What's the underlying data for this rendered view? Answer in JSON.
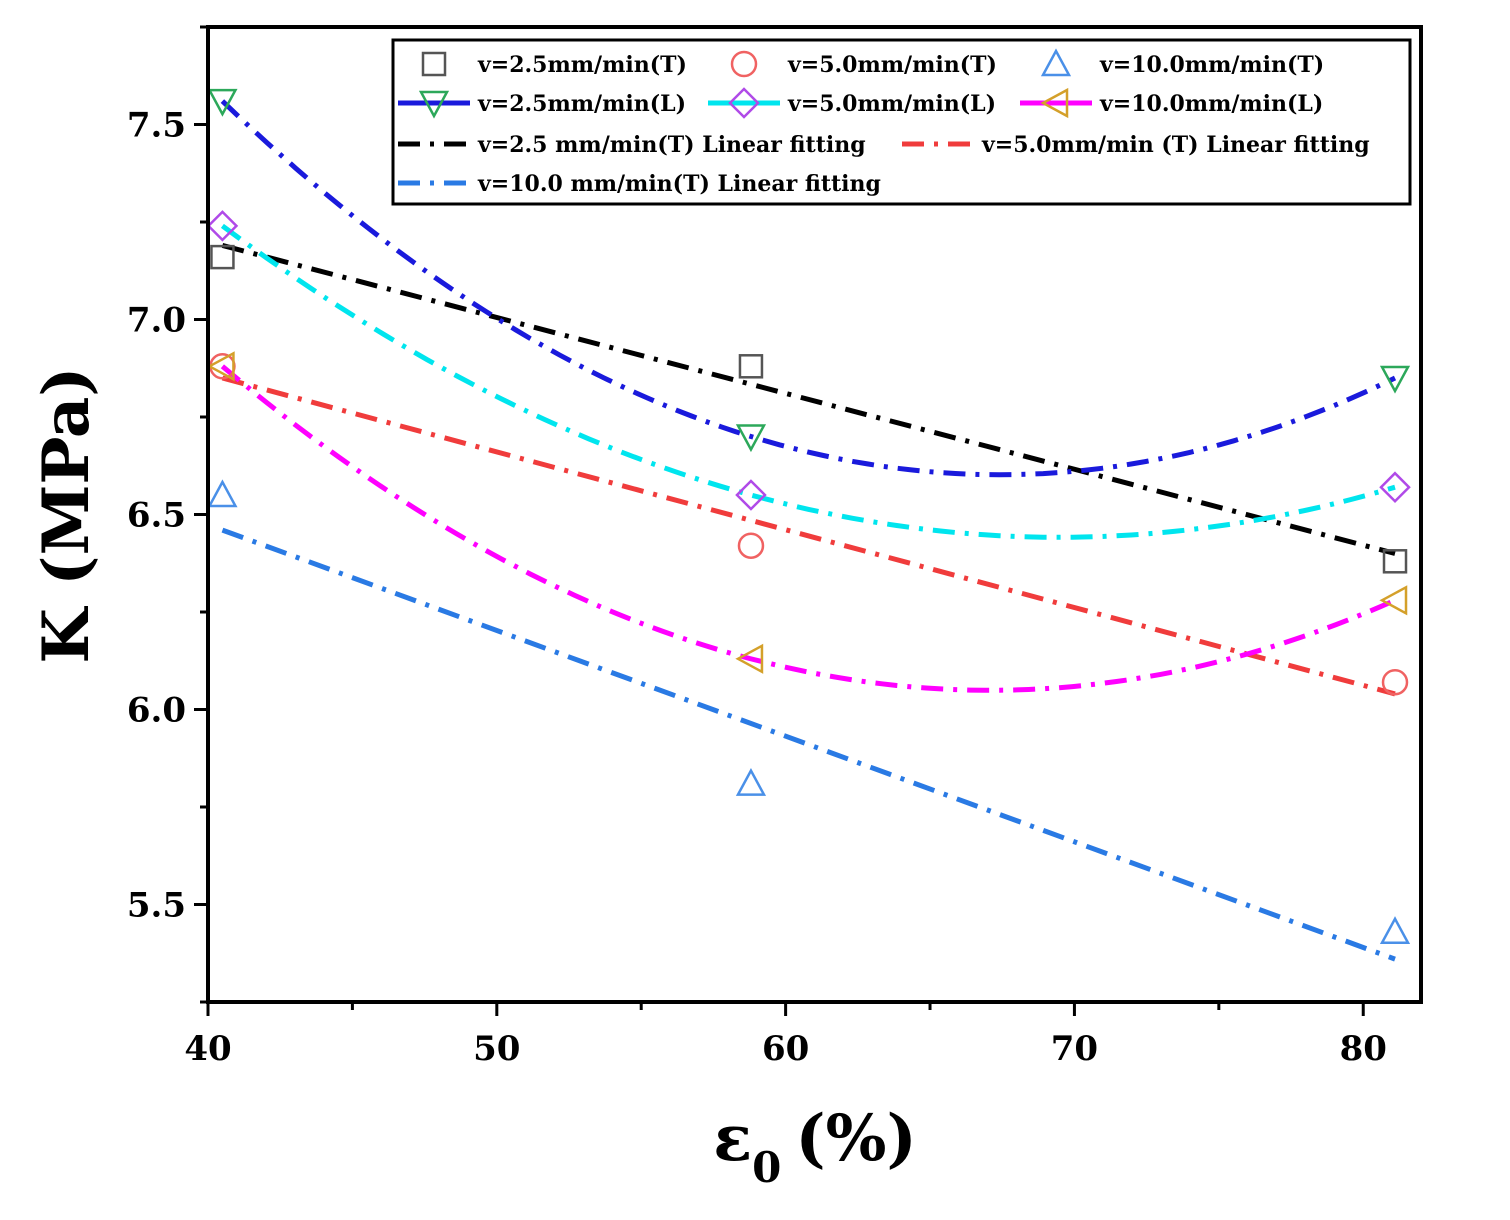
{
  "chart_data": {
    "type": "scatter",
    "xlabel": "ε",
    "xlabel_subscript": "0",
    "xlabel_unit": "(%)",
    "ylabel": "K (MPa)",
    "xlim": [
      40,
      82
    ],
    "ylim": [
      5.25,
      7.75
    ],
    "xticks": [
      40,
      50,
      60,
      70,
      80
    ],
    "yticks": [
      5.5,
      6.0,
      6.5,
      7.0,
      7.5
    ],
    "xtick_labels": [
      "40",
      "50",
      "60",
      "70",
      "80"
    ],
    "ytick_labels": [
      "5.5",
      "6.0",
      "6.5",
      "7.0",
      "7.5"
    ],
    "grid": false,
    "legend_position": "top-right",
    "scatter_series": [
      {
        "name": "v=2.5mm/min(T)",
        "marker": "square",
        "color": "#555555",
        "x": [
          40.5,
          58.8,
          81.1
        ],
        "y": [
          7.16,
          6.88,
          6.38
        ]
      },
      {
        "name": "v=5.0mm/min(T)",
        "marker": "circle",
        "color": "#f06262",
        "x": [
          40.5,
          58.8,
          81.1
        ],
        "y": [
          6.88,
          6.42,
          6.07
        ]
      },
      {
        "name": "v=10.0mm/min(T)",
        "marker": "triangle-up",
        "color": "#4a90e8",
        "x": [
          40.5,
          58.8,
          81.1
        ],
        "y": [
          6.55,
          5.81,
          5.43
        ]
      },
      {
        "name": "v=2.5mm/min(L)",
        "marker": "triangle-down",
        "color": "#2ca85a",
        "line_color": "#1a1adc",
        "x": [
          40.5,
          58.8,
          81.1
        ],
        "y": [
          7.56,
          6.7,
          6.85
        ]
      },
      {
        "name": "v=5.0mm/min(L)",
        "marker": "diamond",
        "color": "#b04ae8",
        "line_color": "#00e5ee",
        "x": [
          40.5,
          58.8,
          81.1
        ],
        "y": [
          7.24,
          6.55,
          6.57
        ]
      },
      {
        "name": "v=10.0mm/min(L)",
        "marker": "triangle-left",
        "color": "#d4a02a",
        "line_color": "#ff00ff",
        "x": [
          40.5,
          58.8,
          81.1
        ],
        "y": [
          6.88,
          6.13,
          6.28
        ]
      }
    ],
    "fit_series": [
      {
        "name": "v=2.5 mm/min(T) Linear fitting",
        "color": "#000000",
        "x": [
          40.5,
          81.1
        ],
        "y": [
          7.19,
          6.4
        ]
      },
      {
        "name": "v=5.0mm/min (T) Linear fitting",
        "color": "#f03c3c",
        "x": [
          40.5,
          81.1
        ],
        "y": [
          6.85,
          6.04
        ]
      },
      {
        "name": "v=10.0 mm/min(T) Linear fitting",
        "color": "#2a7ae4",
        "x": [
          40.5,
          81.1
        ],
        "y": [
          6.46,
          5.36
        ]
      }
    ]
  }
}
